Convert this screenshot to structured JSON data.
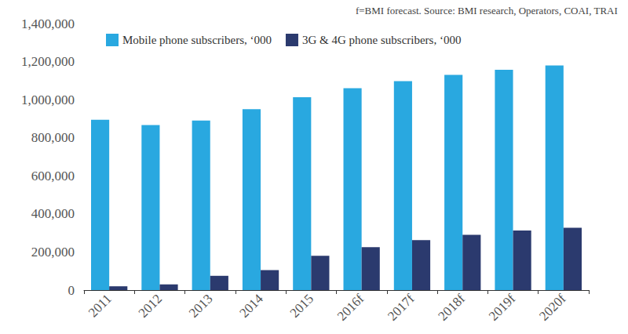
{
  "chart_data": {
    "type": "bar",
    "annotation": "f=BMI forecast. Source: BMI research, Operators, COAI, TRAI",
    "categories": [
      "2011",
      "2012",
      "2013",
      "2014",
      "2015",
      "2016f",
      "2017f",
      "2018f",
      "2019f",
      "2020f"
    ],
    "series": [
      {
        "name": "Mobile phone subscribers, ‘000",
        "color": "#29a8e0",
        "values": [
          895000,
          867000,
          890000,
          950000,
          1013000,
          1060000,
          1097000,
          1130000,
          1157000,
          1180000
        ]
      },
      {
        "name": "3G & 4G phone subscribers, ‘000",
        "color": "#2b3a6e",
        "values": [
          20000,
          30000,
          75000,
          105000,
          180000,
          225000,
          262000,
          290000,
          313000,
          327000
        ]
      }
    ],
    "ylim": [
      0,
      1400000
    ],
    "yticks": [
      0,
      {
        "value": 200000,
        "label": "200,000"
      },
      {
        "value": 400000,
        "label": "400,000"
      },
      {
        "value": 600000,
        "label": "600,000"
      },
      {
        "value": 800000,
        "label": "800,000"
      },
      {
        "value": 1000000,
        "label": "1,000,000"
      },
      {
        "value": 1200000,
        "label": "1,200,000"
      },
      {
        "value": 1400000,
        "label": "1,400,000"
      }
    ],
    "grid": false,
    "legend": "upper left"
  }
}
